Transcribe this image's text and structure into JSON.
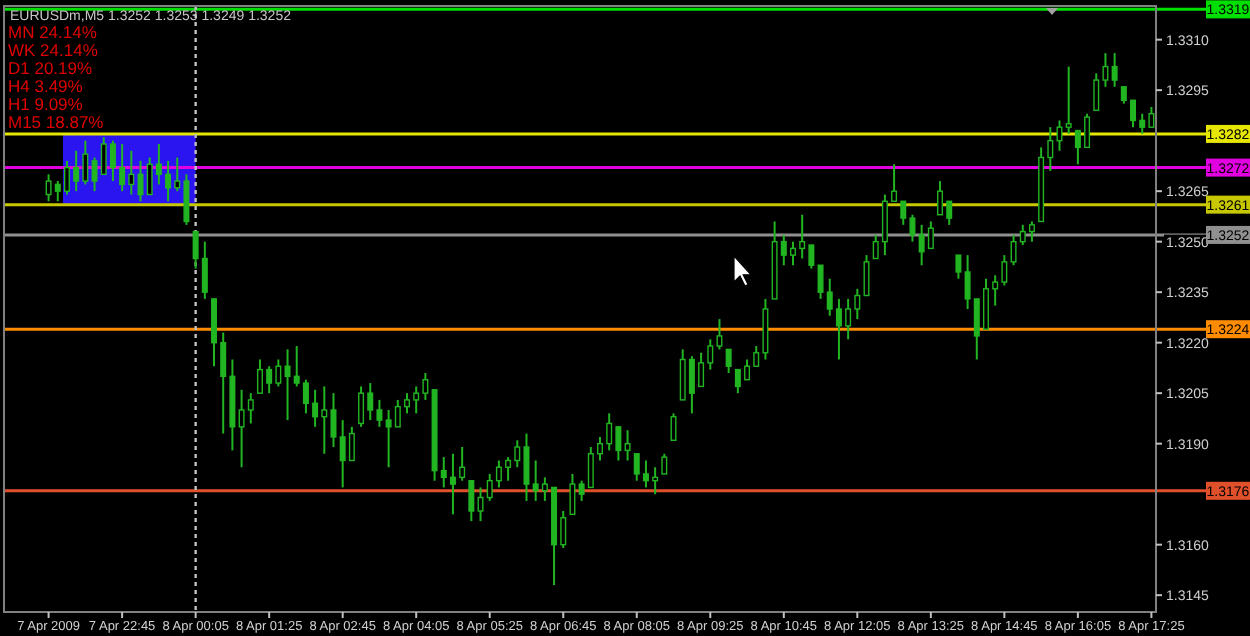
{
  "chart_data": {
    "type": "candlestick",
    "title": "EURUSDm,M5  1.3252 1.3253 1.3249 1.3252",
    "annotations": [
      "MN  24.14%",
      "WK  24.14%",
      "D1  20.19%",
      "H4  3.49%",
      "H1  9.09%",
      "M15  18.87%"
    ],
    "categories": [
      "7 Apr 2009",
      null,
      null,
      null,
      null,
      null,
      null,
      null,
      "7 Apr 22:45",
      null,
      null,
      null,
      null,
      null,
      null,
      null,
      "8 Apr 00:05",
      null,
      null,
      null,
      null,
      null,
      null,
      null,
      "8 Apr 01:25",
      null,
      null,
      null,
      null,
      null,
      null,
      null,
      "8 Apr 02:45",
      null,
      null,
      null,
      null,
      null,
      null,
      null,
      "8 Apr 04:05",
      null,
      null,
      null,
      null,
      null,
      null,
      null,
      "8 Apr 05:25",
      null,
      null,
      null,
      null,
      null,
      null,
      null,
      "8 Apr 06:45",
      null,
      null,
      null,
      null,
      null,
      null,
      null,
      "8 Apr 08:05",
      null,
      null,
      null,
      null,
      null,
      null,
      null,
      "8 Apr 09:25",
      null,
      null,
      null,
      null,
      null,
      null,
      null,
      "8 Apr 10:45",
      null,
      null,
      null,
      null,
      null,
      null,
      null,
      "8 Apr 12:05",
      null,
      null,
      null,
      null,
      null,
      null,
      null,
      "8 Apr 13:25",
      null,
      null,
      null,
      null,
      null,
      null,
      null,
      "8 Apr 14:45",
      null,
      null,
      null,
      null,
      null,
      null,
      null,
      "8 Apr 16:05",
      null,
      null,
      null,
      null,
      null,
      null,
      null,
      "8 Apr 17:25"
    ],
    "color": "#22b522",
    "ohlc": [
      [
        1.3264,
        1.327,
        1.3262,
        1.3268
      ],
      [
        1.3267,
        1.3268,
        1.3262,
        1.3265
      ],
      [
        1.3265,
        1.3274,
        1.3264,
        1.3272
      ],
      [
        1.3272,
        1.3277,
        1.3265,
        1.3268
      ],
      [
        1.3268,
        1.328,
        1.3267,
        1.3276
      ],
      [
        1.3274,
        1.3275,
        1.3265,
        1.3268
      ],
      [
        1.327,
        1.3281,
        1.327,
        1.3279
      ],
      [
        1.3279,
        1.328,
        1.3268,
        1.3272
      ],
      [
        1.3272,
        1.3279,
        1.3265,
        1.3267
      ],
      [
        1.3267,
        1.3277,
        1.3264,
        1.327
      ],
      [
        1.327,
        1.3274,
        1.3262,
        1.3264
      ],
      [
        1.3264,
        1.3275,
        1.3264,
        1.3273
      ],
      [
        1.3273,
        1.3279,
        1.3267,
        1.327
      ],
      [
        1.327,
        1.3274,
        1.3262,
        1.3266
      ],
      [
        1.3266,
        1.3275,
        1.3265,
        1.3268
      ],
      [
        1.3268,
        1.327,
        1.3255,
        1.3256
      ],
      [
        1.3253,
        1.3253,
        1.3242,
        1.3245
      ],
      [
        1.3245,
        1.325,
        1.3233,
        1.3235
      ],
      [
        1.3233,
        1.3233,
        1.3213,
        1.322
      ],
      [
        1.322,
        1.3223,
        1.3193,
        1.321
      ],
      [
        1.321,
        1.3215,
        1.3188,
        1.3195
      ],
      [
        1.3195,
        1.3206,
        1.3183,
        1.32
      ],
      [
        1.32,
        1.3205,
        1.3196,
        1.3203
      ],
      [
        1.3205,
        1.3215,
        1.3205,
        1.3212
      ],
      [
        1.3212,
        1.3213,
        1.3205,
        1.3208
      ],
      [
        1.3208,
        1.3215,
        1.3207,
        1.3213
      ],
      [
        1.3213,
        1.3218,
        1.3197,
        1.321
      ],
      [
        1.321,
        1.3219,
        1.3207,
        1.3208
      ],
      [
        1.3208,
        1.3209,
        1.3199,
        1.3202
      ],
      [
        1.3202,
        1.3206,
        1.3195,
        1.3198
      ],
      [
        1.3198,
        1.3207,
        1.3187,
        1.32
      ],
      [
        1.32,
        1.3205,
        1.3189,
        1.3192
      ],
      [
        1.3192,
        1.3197,
        1.3177,
        1.3185
      ],
      [
        1.3185,
        1.3195,
        1.3185,
        1.3193
      ],
      [
        1.3196,
        1.3207,
        1.3195,
        1.3205
      ],
      [
        1.3205,
        1.3208,
        1.3197,
        1.32
      ],
      [
        1.32,
        1.3203,
        1.3195,
        1.3197
      ],
      [
        1.3197,
        1.32,
        1.3183,
        1.3195
      ],
      [
        1.3195,
        1.3203,
        1.3195,
        1.3201
      ],
      [
        1.3201,
        1.3205,
        1.3199,
        1.3203
      ],
      [
        1.3203,
        1.3207,
        1.3199,
        1.3205
      ],
      [
        1.3205,
        1.3211,
        1.3203,
        1.3209
      ],
      [
        1.3206,
        1.3206,
        1.3179,
        1.3182
      ],
      [
        1.3182,
        1.3186,
        1.3177,
        1.318
      ],
      [
        1.318,
        1.3187,
        1.3169,
        1.3178
      ],
      [
        1.318,
        1.3189,
        1.3179,
        1.3183
      ],
      [
        1.3179,
        1.3179,
        1.3167,
        1.317
      ],
      [
        1.317,
        1.3177,
        1.3167,
        1.3174
      ],
      [
        1.3174,
        1.3181,
        1.3173,
        1.3179
      ],
      [
        1.3179,
        1.3185,
        1.3177,
        1.3183
      ],
      [
        1.3183,
        1.3186,
        1.3179,
        1.3185
      ],
      [
        1.3185,
        1.3191,
        1.3183,
        1.3189
      ],
      [
        1.3189,
        1.3193,
        1.3173,
        1.3178
      ],
      [
        1.3178,
        1.3185,
        1.3173,
        1.3176
      ],
      [
        1.3176,
        1.318,
        1.3173,
        1.3178
      ],
      [
        1.3177,
        1.3177,
        1.3148,
        1.316
      ],
      [
        1.316,
        1.317,
        1.3159,
        1.3168
      ],
      [
        1.3169,
        1.3181,
        1.3169,
        1.3178
      ],
      [
        1.3178,
        1.3179,
        1.3173,
        1.3175
      ],
      [
        1.3177,
        1.3189,
        1.3177,
        1.3187
      ],
      [
        1.3187,
        1.3192,
        1.3185,
        1.319
      ],
      [
        1.319,
        1.3199,
        1.3188,
        1.3196
      ],
      [
        1.3195,
        1.3195,
        1.3185,
        1.3188
      ],
      [
        1.3188,
        1.3194,
        1.3185,
        1.319
      ],
      [
        1.3187,
        1.3187,
        1.3179,
        1.3181
      ],
      [
        1.3181,
        1.3185,
        1.3177,
        1.3179
      ],
      [
        1.3179,
        1.3183,
        1.3175,
        1.318
      ],
      [
        1.3181,
        1.3187,
        1.3181,
        1.3186
      ],
      [
        1.3191,
        1.3199,
        1.3191,
        1.3198
      ],
      [
        1.3203,
        1.3218,
        1.3203,
        1.3215
      ],
      [
        1.3215,
        1.3216,
        1.3199,
        1.3205
      ],
      [
        1.3207,
        1.3217,
        1.3207,
        1.3214
      ],
      [
        1.3214,
        1.3221,
        1.3212,
        1.3219
      ],
      [
        1.3219,
        1.3227,
        1.3218,
        1.3222
      ],
      [
        1.3218,
        1.3218,
        1.3211,
        1.3213
      ],
      [
        1.3212,
        1.3212,
        1.3205,
        1.3207
      ],
      [
        1.3209,
        1.3215,
        1.3209,
        1.3213
      ],
      [
        1.3213,
        1.3219,
        1.3213,
        1.3217
      ],
      [
        1.3217,
        1.3233,
        1.3215,
        1.323
      ],
      [
        1.3233,
        1.3256,
        1.3233,
        1.325
      ],
      [
        1.325,
        1.3252,
        1.3243,
        1.3246
      ],
      [
        1.3246,
        1.325,
        1.3243,
        1.3248
      ],
      [
        1.3248,
        1.3258,
        1.3245,
        1.325
      ],
      [
        1.3249,
        1.3249,
        1.3242,
        1.3243
      ],
      [
        1.3243,
        1.3243,
        1.3233,
        1.3235
      ],
      [
        1.3235,
        1.3239,
        1.3228,
        1.323
      ],
      [
        1.323,
        1.3233,
        1.3215,
        1.3225
      ],
      [
        1.3225,
        1.3233,
        1.3221,
        1.323
      ],
      [
        1.323,
        1.3236,
        1.3227,
        1.3234
      ],
      [
        1.3234,
        1.3246,
        1.3234,
        1.3244
      ],
      [
        1.3245,
        1.3252,
        1.3245,
        1.325
      ],
      [
        1.325,
        1.3264,
        1.3246,
        1.3262
      ],
      [
        1.3262,
        1.3273,
        1.3262,
        1.3265
      ],
      [
        1.3262,
        1.3262,
        1.3255,
        1.3257
      ],
      [
        1.3257,
        1.3258,
        1.325,
        1.3252
      ],
      [
        1.3252,
        1.3255,
        1.3243,
        1.3247
      ],
      [
        1.3248,
        1.3256,
        1.3248,
        1.3254
      ],
      [
        1.3258,
        1.3268,
        1.3258,
        1.3265
      ],
      [
        1.3262,
        1.3262,
        1.3255,
        1.3257
      ],
      [
        1.3246,
        1.3246,
        1.3239,
        1.3241
      ],
      [
        1.3241,
        1.3246,
        1.323,
        1.3233
      ],
      [
        1.3233,
        1.3233,
        1.3215,
        1.3222
      ],
      [
        1.3224,
        1.3239,
        1.3224,
        1.3236
      ],
      [
        1.3236,
        1.324,
        1.3231,
        1.3238
      ],
      [
        1.3238,
        1.3246,
        1.3237,
        1.3244
      ],
      [
        1.3244,
        1.3252,
        1.3243,
        1.325
      ],
      [
        1.325,
        1.3255,
        1.3249,
        1.3253
      ],
      [
        1.3253,
        1.3256,
        1.325,
        1.3255
      ],
      [
        1.3256,
        1.3278,
        1.3256,
        1.3275
      ],
      [
        1.3275,
        1.3284,
        1.3271,
        1.328
      ],
      [
        1.328,
        1.3286,
        1.3277,
        1.3284
      ],
      [
        1.3284,
        1.3302,
        1.3282,
        1.3285
      ],
      [
        1.3283,
        1.3283,
        1.3273,
        1.3278
      ],
      [
        1.3278,
        1.3288,
        1.3278,
        1.3287
      ],
      [
        1.3289,
        1.33,
        1.3289,
        1.3298
      ],
      [
        1.3298,
        1.3306,
        1.3296,
        1.3302
      ],
      [
        1.3302,
        1.3306,
        1.3296,
        1.3298
      ],
      [
        1.3296,
        1.3296,
        1.3291,
        1.3292
      ],
      [
        1.3292,
        1.3292,
        1.3284,
        1.3286
      ],
      [
        1.3286,
        1.3288,
        1.3282,
        1.3284
      ],
      [
        1.3284,
        1.329,
        1.3284,
        1.3288
      ]
    ],
    "ylim": [
      1.314,
      1.332
    ],
    "yticks": [
      1.3145,
      {
        "value": 1.316,
        "label": "1.3160"
      },
      {
        "value": 1.319,
        "label": "1.3190"
      },
      1.3205,
      {
        "value": 1.322,
        "label": "1.3220"
      },
      1.3235,
      {
        "value": 1.325,
        "label": "1.3250"
      },
      1.3265,
      1.3295,
      {
        "value": 1.331,
        "label": "1.3310"
      }
    ],
    "ref_lines": [
      {
        "axis": "y",
        "value": 1.3319,
        "label": "1.3319",
        "color": "#00e000"
      },
      {
        "axis": "y",
        "value": 1.3282,
        "label": "1.3282",
        "color": "#e6e600"
      },
      {
        "axis": "y",
        "value": 1.3272,
        "label": "1.3272",
        "color": "#e000e0"
      },
      {
        "axis": "y",
        "value": 1.3261,
        "label": "1.3261",
        "color": "#c8c800"
      },
      {
        "axis": "y",
        "value": 1.3252,
        "label": "1.3252",
        "color": "#909090"
      },
      {
        "axis": "y",
        "value": 1.3224,
        "label": "1.3224",
        "color": "#ff8c00"
      },
      {
        "axis": "y",
        "value": 1.3176,
        "label": "1.3176",
        "color": "#e0502a"
      },
      {
        "axis": "x",
        "value": "8 Apr 00:05",
        "color": "#c0c0c0",
        "line_style": "dotted"
      }
    ],
    "bands": [
      {
        "axis": "y",
        "from": 1.3261,
        "to": 1.3282,
        "color": "#2a14f0"
      }
    ]
  }
}
